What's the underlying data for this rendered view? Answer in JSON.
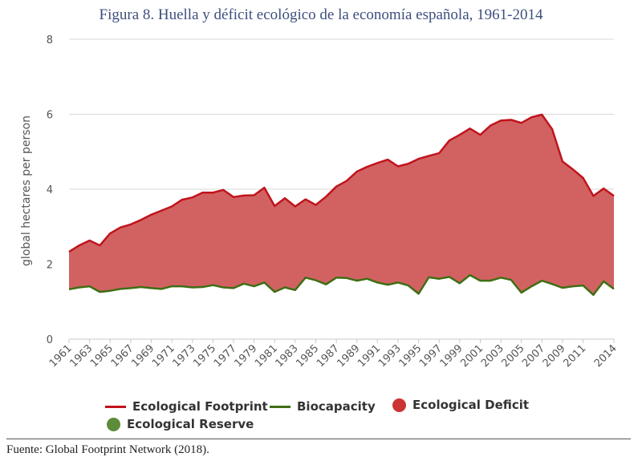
{
  "title": "Figura 8. Huella y déficit ecológico de la economía española, 1961-2014",
  "source": "Fuente: Global Footprint Network (2018).",
  "chart_data": {
    "type": "area",
    "ylabel": "global hectares per person",
    "ylim": [
      0,
      8
    ],
    "yticks": [
      0,
      2,
      4,
      6,
      8
    ],
    "grid": true,
    "legend_position": "bottom",
    "x": [
      1961,
      1962,
      1963,
      1964,
      1965,
      1966,
      1967,
      1968,
      1969,
      1970,
      1971,
      1972,
      1973,
      1974,
      1975,
      1976,
      1977,
      1978,
      1979,
      1980,
      1981,
      1982,
      1983,
      1984,
      1985,
      1986,
      1987,
      1988,
      1989,
      1990,
      1991,
      1992,
      1993,
      1994,
      1995,
      1996,
      1997,
      1998,
      1999,
      2000,
      2001,
      2002,
      2003,
      2004,
      2005,
      2006,
      2007,
      2008,
      2009,
      2010,
      2011,
      2012,
      2013,
      2014
    ],
    "xtick_labels": [
      "1961",
      "1963",
      "1965",
      "1967",
      "1969",
      "1971",
      "1973",
      "1975",
      "1977",
      "1979",
      "1981",
      "1983",
      "1985",
      "1987",
      "1989",
      "1991",
      "1993",
      "1995",
      "1997",
      "1999",
      "2001",
      "2003",
      "2005",
      "2007",
      "2009",
      "2011",
      "2014"
    ],
    "series": [
      {
        "name": "Ecological Footprint",
        "kind": "line",
        "color": "#c0141c",
        "values": [
          2.33,
          2.5,
          2.63,
          2.5,
          2.82,
          2.98,
          3.06,
          3.18,
          3.32,
          3.43,
          3.54,
          3.72,
          3.78,
          3.91,
          3.91,
          3.98,
          3.79,
          3.83,
          3.84,
          4.04,
          3.55,
          3.76,
          3.54,
          3.73,
          3.58,
          3.8,
          4.07,
          4.22,
          4.47,
          4.6,
          4.7,
          4.79,
          4.61,
          4.68,
          4.81,
          4.89,
          4.96,
          5.3,
          5.45,
          5.62,
          5.45,
          5.7,
          5.83,
          5.85,
          5.77,
          5.92,
          5.99,
          5.6,
          4.74,
          4.53,
          4.3,
          3.82,
          4.02,
          3.82
        ]
      },
      {
        "name": "Biocapacity",
        "kind": "line",
        "color": "#3f6e14",
        "values": [
          1.33,
          1.38,
          1.41,
          1.26,
          1.29,
          1.34,
          1.36,
          1.39,
          1.36,
          1.34,
          1.41,
          1.41,
          1.38,
          1.39,
          1.44,
          1.38,
          1.36,
          1.48,
          1.41,
          1.51,
          1.26,
          1.38,
          1.31,
          1.64,
          1.57,
          1.46,
          1.64,
          1.63,
          1.56,
          1.61,
          1.51,
          1.45,
          1.51,
          1.43,
          1.21,
          1.65,
          1.61,
          1.66,
          1.49,
          1.71,
          1.56,
          1.56,
          1.64,
          1.58,
          1.24,
          1.41,
          1.56,
          1.47,
          1.37,
          1.41,
          1.43,
          1.18,
          1.54,
          1.34
        ]
      }
    ],
    "areas": [
      {
        "name": "Ecological Deficit",
        "color": "#d05a5a",
        "legend_color": "#cc3333"
      },
      {
        "name": "Ecological Reserve",
        "color": "#5e8c3a",
        "legend_color": "#5e8c3a"
      }
    ]
  }
}
